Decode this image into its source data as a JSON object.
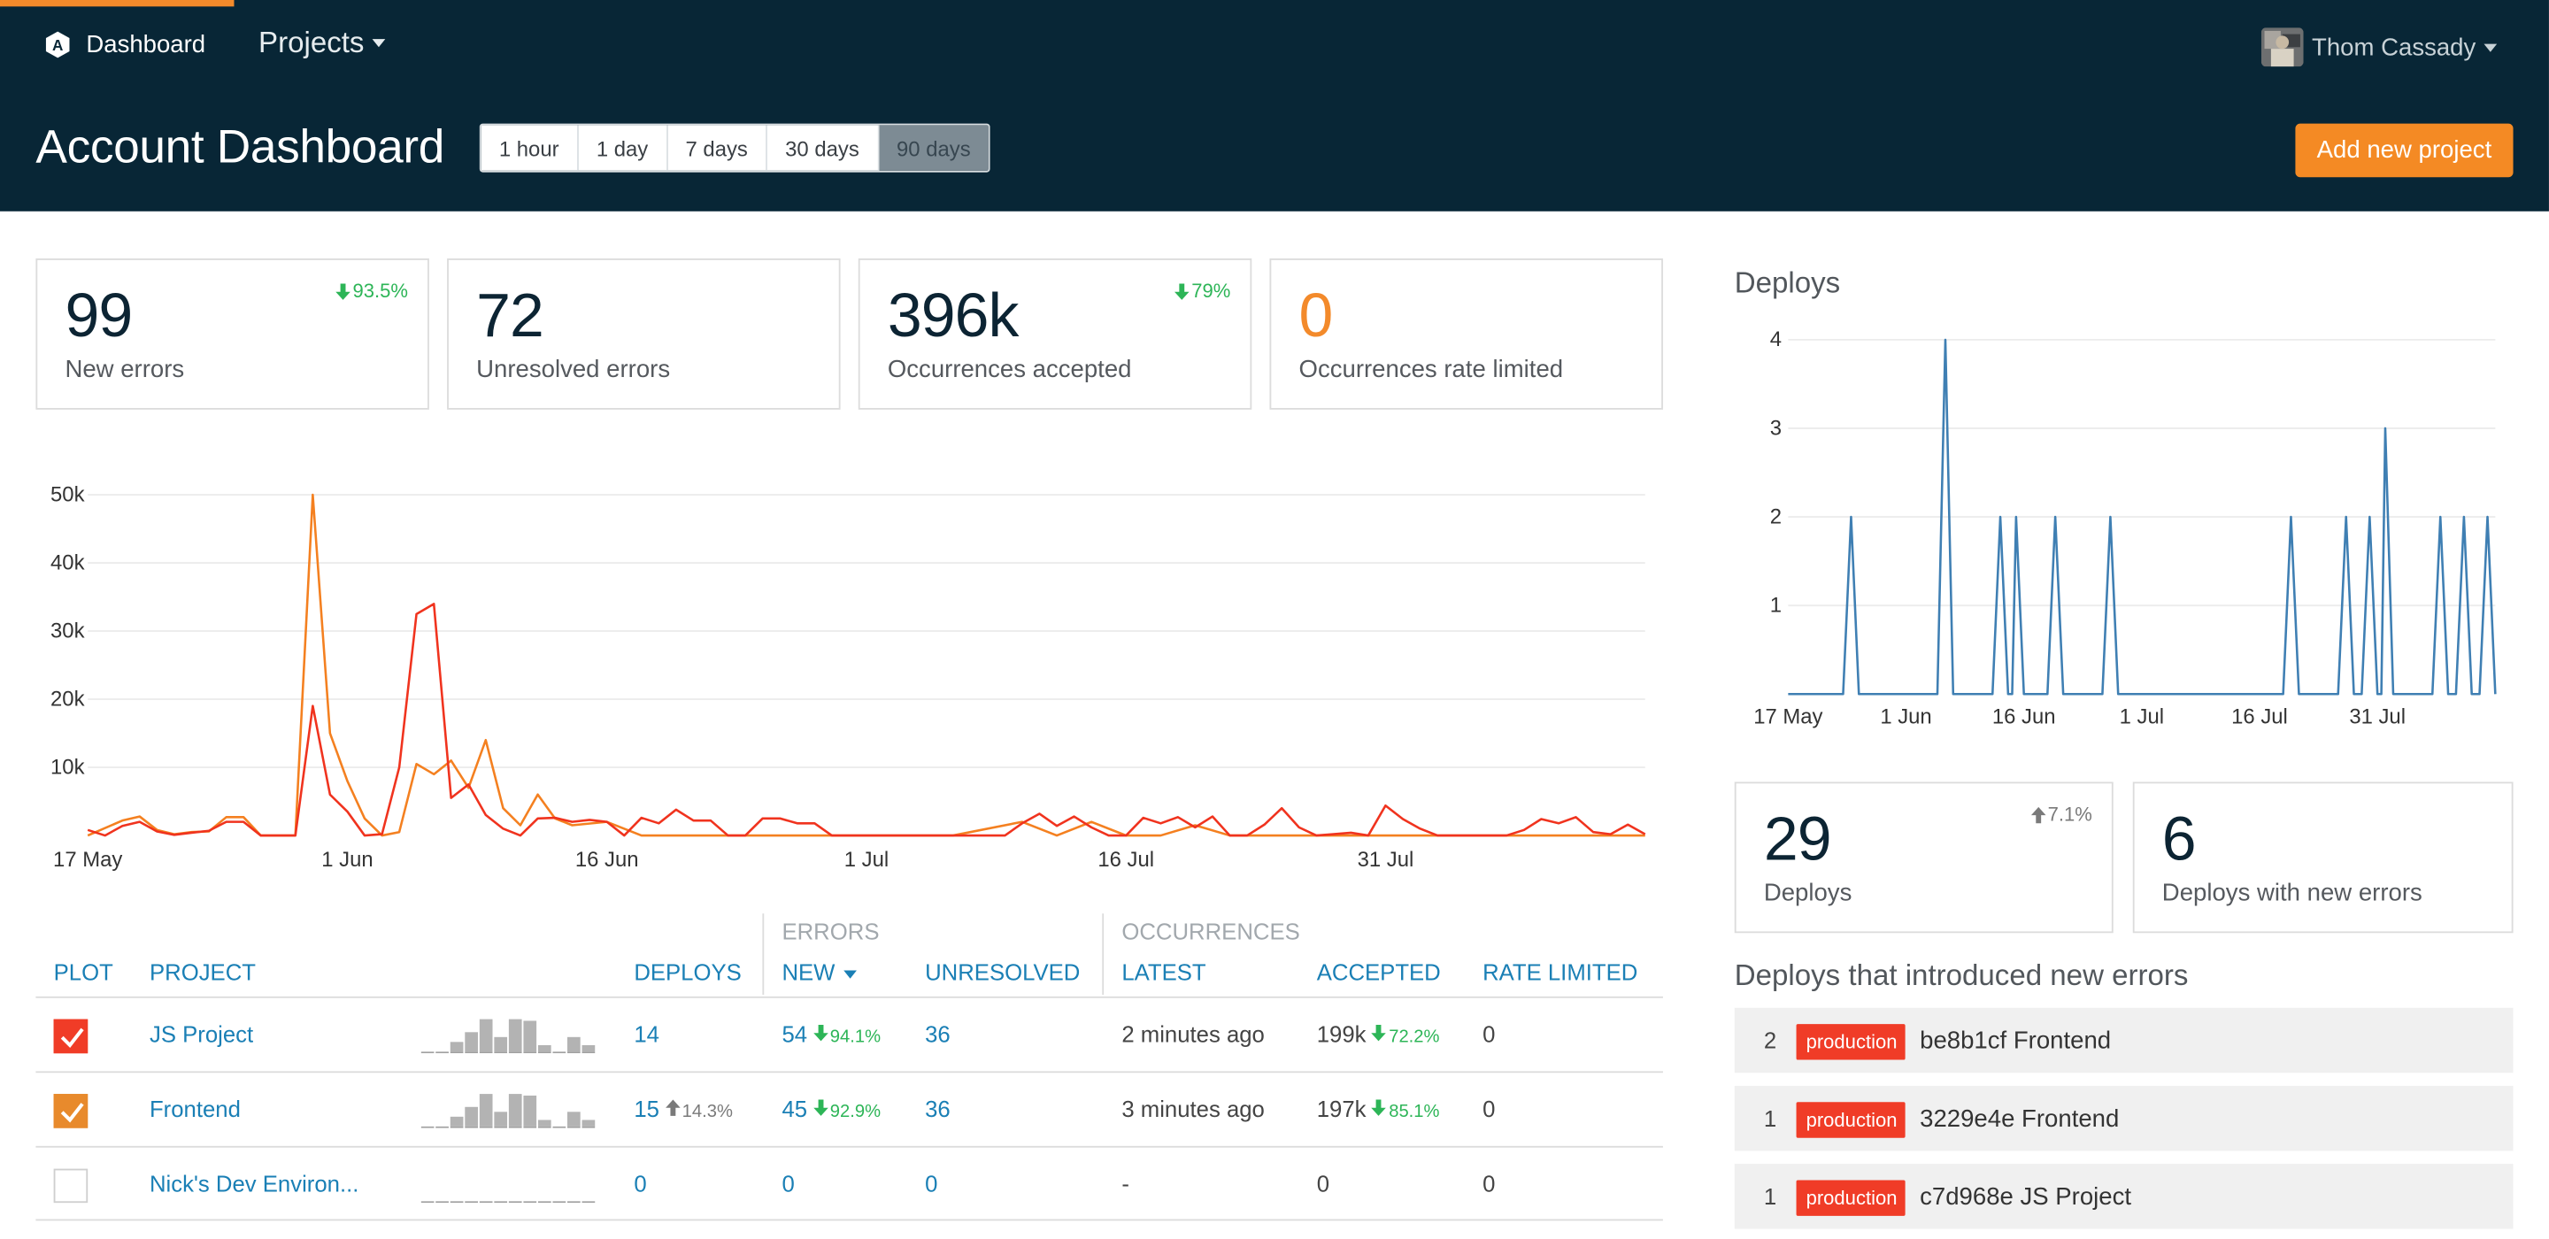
{
  "nav": {
    "brand": "Dashboard",
    "projects": "Projects",
    "user": "Thom Cassady"
  },
  "header": {
    "title": "Account Dashboard",
    "ranges": [
      "1 hour",
      "1 day",
      "7 days",
      "30 days",
      "90 days"
    ],
    "active_range": "90 days",
    "add_project": "Add new project"
  },
  "colors": {
    "accent": "#f38a2b",
    "header_bg": "#082636",
    "link": "#1a7fb5",
    "down_good": "#2db557",
    "production": "#f03c27"
  },
  "stats": [
    {
      "value": "99",
      "label": "New errors",
      "delta": "93.5%",
      "direction": "down"
    },
    {
      "value": "72",
      "label": "Unresolved errors",
      "delta": "",
      "direction": ""
    },
    {
      "value": "396k",
      "label": "Occurrences accepted",
      "delta": "79%",
      "direction": "down"
    },
    {
      "value": "0",
      "label": "Occurrences rate limited",
      "delta": "",
      "direction": ""
    }
  ],
  "chart_data": [
    {
      "type": "line",
      "title": "",
      "x_ticks": [
        "17 May",
        "1 Jun",
        "16 Jun",
        "1 Jul",
        "16 Jul",
        "31 Jul"
      ],
      "y_ticks": [
        "10k",
        "20k",
        "30k",
        "40k",
        "50k"
      ],
      "ylim": [
        0,
        52000
      ],
      "grid": true,
      "x_start": "2017-05-17",
      "series": [
        {
          "color": "#f48020",
          "points": [
            [
              0,
              0
            ],
            [
              2,
              2200
            ],
            [
              3,
              2800
            ],
            [
              4,
              800
            ],
            [
              5,
              200
            ],
            [
              6,
              500
            ],
            [
              7,
              600
            ],
            [
              8,
              2700
            ],
            [
              9,
              2700
            ],
            [
              10,
              0
            ],
            [
              12,
              0
            ],
            [
              13,
              50000
            ],
            [
              14,
              15000
            ],
            [
              15,
              8000
            ],
            [
              16,
              2500
            ],
            [
              17,
              0
            ],
            [
              18,
              500
            ],
            [
              19,
              10500
            ],
            [
              20,
              9000
            ],
            [
              21,
              11000
            ],
            [
              22,
              7000
            ],
            [
              23,
              14000
            ],
            [
              24,
              4000
            ],
            [
              25,
              1500
            ],
            [
              26,
              6000
            ],
            [
              27,
              2500
            ],
            [
              28,
              1500
            ],
            [
              30,
              2000
            ],
            [
              32,
              0
            ],
            [
              50,
              0
            ],
            [
              54,
              2000
            ],
            [
              56,
              0
            ],
            [
              58,
              2000
            ],
            [
              60,
              0
            ],
            [
              62,
              0
            ],
            [
              64,
              1500
            ],
            [
              66,
              0
            ],
            [
              68,
              0
            ],
            [
              70,
              0
            ],
            [
              72,
              0
            ],
            [
              74,
              0
            ],
            [
              76,
              0
            ],
            [
              78,
              0
            ],
            [
              80,
              0
            ],
            [
              82,
              0
            ],
            [
              84,
              0
            ],
            [
              86,
              0
            ],
            [
              90,
              0
            ]
          ]
        },
        {
          "color": "#f0331e",
          "points": [
            [
              0,
              800
            ],
            [
              1,
              0
            ],
            [
              2,
              1400
            ],
            [
              3,
              2000
            ],
            [
              4,
              600
            ],
            [
              5,
              100
            ],
            [
              6,
              400
            ],
            [
              7,
              700
            ],
            [
              8,
              2000
            ],
            [
              9,
              2000
            ],
            [
              10,
              0
            ],
            [
              12,
              0
            ],
            [
              13,
              19000
            ],
            [
              14,
              6000
            ],
            [
              15,
              3500
            ],
            [
              16,
              0
            ],
            [
              17,
              200
            ],
            [
              18,
              10000
            ],
            [
              19,
              32500
            ],
            [
              20,
              34000
            ],
            [
              21,
              5500
            ],
            [
              22,
              7500
            ],
            [
              23,
              3000
            ],
            [
              24,
              1000
            ],
            [
              25,
              0
            ],
            [
              26,
              2500
            ],
            [
              27,
              2600
            ],
            [
              28,
              2000
            ],
            [
              29,
              2300
            ],
            [
              30,
              2000
            ],
            [
              31,
              0
            ],
            [
              32,
              2600
            ],
            [
              33,
              1800
            ],
            [
              34,
              3800
            ],
            [
              35,
              2200
            ],
            [
              36,
              2200
            ],
            [
              37,
              0
            ],
            [
              38,
              0
            ],
            [
              39,
              2500
            ],
            [
              40,
              2500
            ],
            [
              41,
              1800
            ],
            [
              42,
              1800
            ],
            [
              43,
              0
            ],
            [
              53,
              0
            ],
            [
              54,
              1800
            ],
            [
              55,
              3200
            ],
            [
              56,
              1400
            ],
            [
              57,
              2800
            ],
            [
              58,
              1200
            ],
            [
              59,
              0
            ],
            [
              60,
              0
            ],
            [
              61,
              2600
            ],
            [
              62,
              1800
            ],
            [
              63,
              2700
            ],
            [
              64,
              1200
            ],
            [
              65,
              2800
            ],
            [
              66,
              0
            ],
            [
              67,
              0
            ],
            [
              68,
              1600
            ],
            [
              69,
              4000
            ],
            [
              70,
              1200
            ],
            [
              71,
              0
            ],
            [
              72,
              200
            ],
            [
              73,
              400
            ],
            [
              74,
              0
            ],
            [
              75,
              4400
            ],
            [
              76,
              2400
            ],
            [
              77,
              1000
            ],
            [
              78,
              0
            ],
            [
              82,
              0
            ],
            [
              83,
              800
            ],
            [
              84,
              2400
            ],
            [
              85,
              1800
            ],
            [
              86,
              2700
            ],
            [
              87,
              500
            ],
            [
              88,
              200
            ],
            [
              89,
              1600
            ],
            [
              90,
              200
            ]
          ]
        }
      ]
    },
    {
      "type": "line",
      "title": "Deploys",
      "x_ticks": [
        "17 May",
        "1 Jun",
        "16 Jun",
        "1 Jul",
        "16 Jul",
        "31 Jul"
      ],
      "y_ticks": [
        "1",
        "2",
        "3",
        "4"
      ],
      "ylim": [
        0,
        4
      ],
      "grid": true,
      "x_start": "2017-05-17",
      "series": [
        {
          "color": "#3f7fb3",
          "points": [
            [
              0,
              0
            ],
            [
              7,
              0
            ],
            [
              8,
              2
            ],
            [
              9,
              0
            ],
            [
              19,
              0
            ],
            [
              20,
              4
            ],
            [
              21,
              0
            ],
            [
              26,
              0
            ],
            [
              27,
              2
            ],
            [
              28,
              0
            ],
            [
              28.5,
              0
            ],
            [
              29,
              2
            ],
            [
              30,
              0
            ],
            [
              33,
              0
            ],
            [
              34,
              2
            ],
            [
              35,
              0
            ],
            [
              40,
              0
            ],
            [
              41,
              2
            ],
            [
              42,
              0
            ],
            [
              63,
              0
            ],
            [
              64,
              2
            ],
            [
              65,
              0
            ],
            [
              70,
              0
            ],
            [
              71,
              2
            ],
            [
              72,
              0
            ],
            [
              73,
              0
            ],
            [
              74,
              2
            ],
            [
              75,
              0
            ],
            [
              75.5,
              0
            ],
            [
              76,
              3
            ],
            [
              77,
              0
            ],
            [
              82,
              0
            ],
            [
              83,
              2
            ],
            [
              84,
              0
            ],
            [
              85,
              0
            ],
            [
              86,
              2
            ],
            [
              87,
              0
            ],
            [
              88,
              0
            ],
            [
              89,
              2
            ],
            [
              90,
              0
            ]
          ]
        }
      ]
    }
  ],
  "table": {
    "group_errors": "ERRORS",
    "group_occurrences": "OCCURRENCES",
    "headers": {
      "plot": "PLOT",
      "project": "PROJECT",
      "deploys": "DEPLOYS",
      "new": "NEW",
      "unresolved": "UNRESOLVED",
      "latest": "LATEST",
      "accepted": "ACCEPTED",
      "rate_limited": "RATE LIMITED"
    },
    "rows": [
      {
        "checked": true,
        "check_color": "#f03c27",
        "project": "JS Project",
        "spark": [
          0,
          0,
          0.3,
          0.6,
          1,
          0.45,
          1,
          0.95,
          0.2,
          0,
          0.45,
          0.2
        ],
        "deploys": "14",
        "deploys_delta": "",
        "deploys_dir": "",
        "new": "54",
        "new_delta": "94.1%",
        "unresolved": "36",
        "latest": "2 minutes ago",
        "accepted": "199k",
        "accepted_delta": "72.2%",
        "rate_limited": "0"
      },
      {
        "checked": true,
        "check_color": "#e88a2c",
        "project": "Frontend",
        "spark": [
          0,
          0,
          0.3,
          0.6,
          1,
          0.45,
          1,
          0.95,
          0.2,
          0,
          0.45,
          0.2
        ],
        "deploys": "15",
        "deploys_delta": "14.3%",
        "deploys_dir": "up",
        "new": "45",
        "new_delta": "92.9%",
        "unresolved": "36",
        "latest": "3 minutes ago",
        "accepted": "197k",
        "accepted_delta": "85.1%",
        "rate_limited": "0"
      },
      {
        "checked": false,
        "check_color": "",
        "project": "Nick's Dev Environ...",
        "spark": [
          0,
          0,
          0,
          0,
          0,
          0,
          0,
          0,
          0,
          0,
          0,
          0
        ],
        "deploys": "0",
        "deploys_delta": "",
        "deploys_dir": "",
        "new": "0",
        "new_delta": "",
        "unresolved": "0",
        "latest": "-",
        "accepted": "0",
        "accepted_delta": "",
        "rate_limited": "0"
      }
    ]
  },
  "deploy_stats": [
    {
      "value": "29",
      "label": "Deploys",
      "delta": "7.1%",
      "direction": "up"
    },
    {
      "value": "6",
      "label": "Deploys with new errors",
      "delta": "",
      "direction": ""
    }
  ],
  "deploys_section": {
    "title": "Deploys that introduced new errors",
    "items": [
      {
        "count": "2",
        "env": "production",
        "name": "be8b1cf Frontend"
      },
      {
        "count": "1",
        "env": "production",
        "name": "3229e4e Frontend"
      },
      {
        "count": "1",
        "env": "production",
        "name": "c7d968e JS Project"
      }
    ]
  }
}
